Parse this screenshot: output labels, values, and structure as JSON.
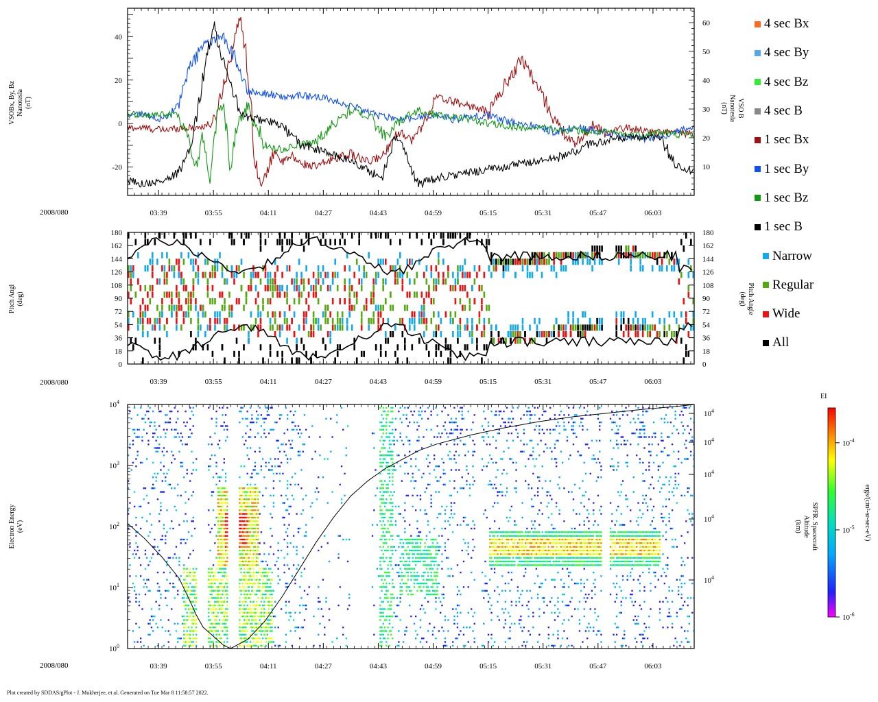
{
  "chart_data": [
    {
      "type": "line",
      "panel": "magnetic-field",
      "ylabel_left": [
        "VSOBx, By, Bz",
        "Nanotesla",
        "(nT)"
      ],
      "ylabel_right": [
        "VSO B",
        "Nanotesla",
        "(nT)"
      ],
      "ylim_left": [
        -33,
        53
      ],
      "ylim_right": [
        0,
        65
      ],
      "yticks_left": [
        -20,
        0,
        20,
        40
      ],
      "yticks_right": [
        10,
        20,
        30,
        40,
        50,
        60
      ],
      "date_label": "2008/080",
      "legend": [
        {
          "name": "4 sec Bx",
          "color": "#ff6a1f"
        },
        {
          "name": "4 sec By",
          "color": "#55a8ee"
        },
        {
          "name": "4 sec Bz",
          "color": "#33ee33"
        },
        {
          "name": "4 sec B",
          "color": "#888888"
        },
        {
          "name": "1 sec Bx",
          "color": "#a01010"
        },
        {
          "name": "1 sec By",
          "color": "#1050f0"
        },
        {
          "name": "1 sec Bz",
          "color": "#119911"
        },
        {
          "name": "1 sec B",
          "color": "#000000"
        }
      ],
      "series": [
        {
          "name": "1 sec Bx",
          "color": "#a01010",
          "x": [
            210,
            215,
            220,
            225,
            230,
            235,
            238,
            241,
            243,
            245,
            247,
            249,
            251,
            253,
            255,
            258,
            260,
            265,
            270,
            275,
            280,
            285,
            287,
            290,
            293,
            296,
            300,
            305,
            310,
            315,
            320,
            325,
            330,
            335,
            340,
            343,
            346,
            349,
            352,
            355,
            360,
            365,
            370,
            375
          ],
          "values": [
            -2,
            -2,
            -3,
            -2,
            -2,
            0,
            18,
            38,
            50,
            25,
            -15,
            -30,
            -20,
            -12,
            -18,
            -15,
            -18,
            -20,
            -16,
            -14,
            -18,
            -14,
            -6,
            -4,
            -8,
            0,
            12,
            10,
            8,
            5,
            18,
            30,
            15,
            0,
            -10,
            -5,
            0,
            -5,
            -3,
            -2,
            -3,
            -4,
            -4,
            -5
          ]
        },
        {
          "name": "1 sec By",
          "color": "#1050f0",
          "x": [
            210,
            215,
            218,
            221,
            225,
            228,
            232,
            235,
            238,
            242,
            245,
            250,
            255,
            260,
            265,
            270,
            275,
            280,
            285,
            290,
            295,
            300,
            305,
            310,
            315,
            320,
            325,
            330,
            335,
            340,
            345,
            350,
            355,
            360,
            365,
            370,
            375
          ],
          "values": [
            4,
            4,
            3,
            2,
            8,
            25,
            36,
            38,
            40,
            28,
            15,
            14,
            12,
            13,
            12,
            11,
            8,
            5,
            3,
            2,
            3,
            4,
            2,
            3,
            4,
            1,
            0,
            -2,
            -4,
            -2,
            -3,
            -4,
            -6,
            -7,
            -6,
            -3,
            -2
          ]
        },
        {
          "name": "1 sec Bz",
          "color": "#119911",
          "x": [
            210,
            215,
            220,
            224,
            226,
            228,
            230,
            232,
            234,
            236,
            238,
            240,
            242,
            245,
            250,
            255,
            260,
            265,
            270,
            275,
            280,
            285,
            290,
            295,
            300,
            305,
            310,
            315,
            320,
            325,
            330,
            335,
            340,
            345,
            350,
            355,
            360,
            365,
            370,
            375
          ],
          "values": [
            4,
            4,
            4,
            4,
            0,
            -8,
            -20,
            -5,
            -25,
            5,
            8,
            -20,
            0,
            8,
            -10,
            -12,
            -10,
            -8,
            0,
            6,
            4,
            -6,
            2,
            6,
            4,
            3,
            2,
            0,
            -1,
            -2,
            -2,
            -3,
            -3,
            -4,
            -4,
            -5,
            -5,
            -4,
            -5,
            -5
          ]
        },
        {
          "name": "1 sec B",
          "color": "#000000",
          "x": [
            210,
            215,
            220,
            224,
            227,
            229,
            231,
            233,
            235,
            237,
            239,
            241,
            243,
            245,
            250,
            255,
            260,
            265,
            270,
            275,
            278,
            281,
            284,
            286,
            288,
            290,
            292,
            295,
            300,
            305,
            310,
            315,
            320,
            325,
            330,
            335,
            340,
            345,
            350,
            355,
            360,
            365,
            370,
            375
          ],
          "values": [
            5,
            4,
            5,
            7,
            12,
            20,
            34,
            48,
            60,
            50,
            42,
            35,
            28,
            27,
            26,
            24,
            18,
            16,
            14,
            12,
            10,
            8,
            6,
            14,
            20,
            18,
            10,
            4,
            6,
            7,
            8,
            9,
            10,
            11,
            12,
            13,
            15,
            18,
            19,
            20,
            20,
            20,
            10,
            8
          ]
        }
      ]
    },
    {
      "type": "scatter",
      "panel": "pitch-angle",
      "ylabel_left": [
        "Pitch Angl",
        "(deg)"
      ],
      "ylabel_right": [
        "Pitch Angle",
        "(deg)"
      ],
      "ylim": [
        0,
        180
      ],
      "yticks": [
        0,
        18,
        36,
        54,
        72,
        90,
        108,
        126,
        144,
        162,
        180
      ],
      "date_label": "2008/080",
      "legend": [
        {
          "name": "Narrow",
          "color": "#11aaee"
        },
        {
          "name": "Regular",
          "color": "#55aa11"
        },
        {
          "name": "Wide",
          "color": "#ee1111"
        },
        {
          "name": "All",
          "color": "#000000"
        }
      ]
    },
    {
      "type": "heatmap",
      "panel": "electron-energy-spectrogram",
      "ylabel_left": [
        "Electron Energy",
        "(eV)"
      ],
      "ylabel_right": [
        "SPFR. Spacecraft",
        "Altitude",
        "(km)"
      ],
      "y_scale": "log",
      "ylim": [
        1,
        10000
      ],
      "yticks": [
        {
          "base": "10",
          "exp": "0"
        },
        {
          "base": "10",
          "exp": "1"
        },
        {
          "base": "10",
          "exp": "2"
        },
        {
          "base": "10",
          "exp": "3"
        },
        {
          "base": "10",
          "exp": "4"
        }
      ],
      "yticks_right": [
        {
          "base": "10",
          "exp": "4"
        },
        {
          "base": "10",
          "exp": "4"
        },
        {
          "base": "10",
          "exp": "4"
        },
        {
          "base": "10",
          "exp": "4"
        },
        {
          "base": "10",
          "exp": "4"
        },
        {
          "base": "10",
          "exp": "4"
        }
      ],
      "date_label": "2008/080",
      "colorbar": {
        "title": "EI",
        "label": "ergs/(cm²-sr-sec-eV)",
        "ticks": [
          {
            "base": "10",
            "exp": "-4"
          },
          {
            "base": "10",
            "exp": "-5"
          },
          {
            "base": "10",
            "exp": "-6"
          }
        ],
        "range_exp": [
          -6,
          -3.6
        ]
      },
      "altitude_curve": {
        "x": [
          210,
          215,
          220,
          225,
          228,
          230,
          232,
          235,
          238,
          240,
          245,
          250,
          255,
          260,
          265,
          270,
          275,
          280,
          285,
          290,
          295,
          300,
          310,
          320,
          330,
          340,
          350,
          360,
          370,
          375
        ],
        "log_energy": [
          2.05,
          1.8,
          1.5,
          1.15,
          0.8,
          0.55,
          0.35,
          0.2,
          0.05,
          0.0,
          0.15,
          0.45,
          0.85,
          1.3,
          1.75,
          2.15,
          2.5,
          2.75,
          2.95,
          3.1,
          3.25,
          3.35,
          3.5,
          3.62,
          3.72,
          3.8,
          3.86,
          3.92,
          3.97,
          4.0
        ]
      }
    }
  ],
  "x_axis": {
    "ticks": [
      "03:39",
      "03:55",
      "04:11",
      "04:27",
      "04:43",
      "04:59",
      "05:15",
      "05:31",
      "05:47",
      "06:03"
    ],
    "tick_minutes": [
      219,
      235,
      251,
      267,
      283,
      299,
      315,
      331,
      347,
      363
    ],
    "range_minutes": [
      210,
      375
    ]
  },
  "footer": "Plot created by SDDAS/gPlot - J. Mukherjee, et al.  Generated on Tue Mar 8 11:58:57 2022."
}
